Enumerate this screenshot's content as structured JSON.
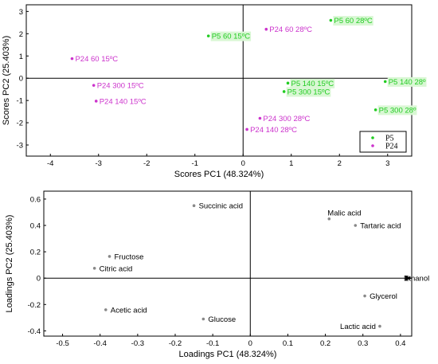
{
  "charts": [
    {
      "type": "scatter",
      "xlabel": "Scores PC1 (48.324%)",
      "ylabel": "Scores PC2 (25.403%)",
      "xlim": [
        -4.5,
        3.5
      ],
      "ylim": [
        -3.5,
        3.3
      ],
      "xticks": [
        "-4",
        "-3",
        "-2",
        "-1",
        "0",
        "1",
        "2",
        "3"
      ],
      "xtick_values": [
        -4,
        -3,
        -2,
        -1,
        0,
        1,
        2,
        3
      ],
      "yticks": [
        "-3",
        "-2",
        "-1",
        "0",
        "1",
        "2",
        "3"
      ],
      "ytick_values": [
        -3,
        -2,
        -1,
        0,
        1,
        2,
        3
      ],
      "legend": {
        "placement": "bottom-right",
        "entries": [
          {
            "label": "P5",
            "color": "#22cc22"
          },
          {
            "label": "P24",
            "color": "#cc33cc"
          }
        ]
      },
      "series": [
        {
          "name": "P5",
          "color": "#22cc22",
          "points": [
            {
              "x": 1.82,
              "y": 2.6,
              "label": "P5 60 28ºC"
            },
            {
              "x": -0.72,
              "y": 1.9,
              "label": "P5 60 15ºC"
            },
            {
              "x": 0.93,
              "y": -0.22,
              "label": "P5 140 15ºC"
            },
            {
              "x": 0.85,
              "y": -0.6,
              "label": "P5 300 15ºC"
            },
            {
              "x": 2.95,
              "y": -0.15,
              "label": "P5 140 28º"
            },
            {
              "x": 2.75,
              "y": -1.42,
              "label": "P5 300 28º"
            }
          ]
        },
        {
          "name": "P24",
          "color": "#cc33cc",
          "points": [
            {
              "x": 0.48,
              "y": 2.2,
              "label": "P24 60 28ºC"
            },
            {
              "x": -3.55,
              "y": 0.88,
              "label": "P24 60 15ºC"
            },
            {
              "x": -3.1,
              "y": -0.32,
              "label": "P24 300 15ºC"
            },
            {
              "x": -3.05,
              "y": -1.03,
              "label": "P24 140 15ºC"
            },
            {
              "x": 0.35,
              "y": -1.8,
              "label": "P24 300 28ºC"
            },
            {
              "x": 0.08,
              "y": -2.3,
              "label": "P24 140 28ºC"
            }
          ]
        }
      ]
    },
    {
      "type": "scatter",
      "xlabel": "Loadings PC1 (48.324%)",
      "ylabel": "Loadings PC2 (25.403%)",
      "xlim": [
        -0.55,
        0.43
      ],
      "ylim": [
        -0.44,
        0.66
      ],
      "xticks": [
        "-0.5",
        "-0.4",
        "-0.3",
        "-0.2",
        "-0.1",
        "0",
        "0.1",
        "0.2",
        "0.3",
        "0.4"
      ],
      "xtick_values": [
        -0.5,
        -0.4,
        -0.3,
        -0.2,
        -0.1,
        0,
        0.1,
        0.2,
        0.3,
        0.4
      ],
      "yticks": [
        "-0.4",
        "-0.2",
        "0",
        "0.2",
        "0.4",
        "0.6"
      ],
      "ytick_values": [
        -0.4,
        -0.2,
        0,
        0.2,
        0.4,
        0.6
      ],
      "series": [
        {
          "color": "#888888",
          "points": [
            {
              "x": -0.15,
              "y": 0.55,
              "label": "Succinic acid"
            },
            {
              "x": 0.21,
              "y": 0.45,
              "label": "Malic acid"
            },
            {
              "x": 0.28,
              "y": 0.4,
              "label": "Tartaric acid"
            },
            {
              "x": -0.375,
              "y": 0.165,
              "label": "Fructose"
            },
            {
              "x": -0.415,
              "y": 0.075,
              "label": "Citric acid"
            },
            {
              "x": 0.41,
              "y": 0.0,
              "label": "Ethanol"
            },
            {
              "x": 0.305,
              "y": -0.135,
              "label": "Glycerol"
            },
            {
              "x": -0.385,
              "y": -0.24,
              "label": "Acetic acid"
            },
            {
              "x": -0.125,
              "y": -0.31,
              "label": "Glucose"
            },
            {
              "x": 0.345,
              "y": -0.365,
              "label": "Lactic acid"
            }
          ]
        }
      ]
    }
  ]
}
